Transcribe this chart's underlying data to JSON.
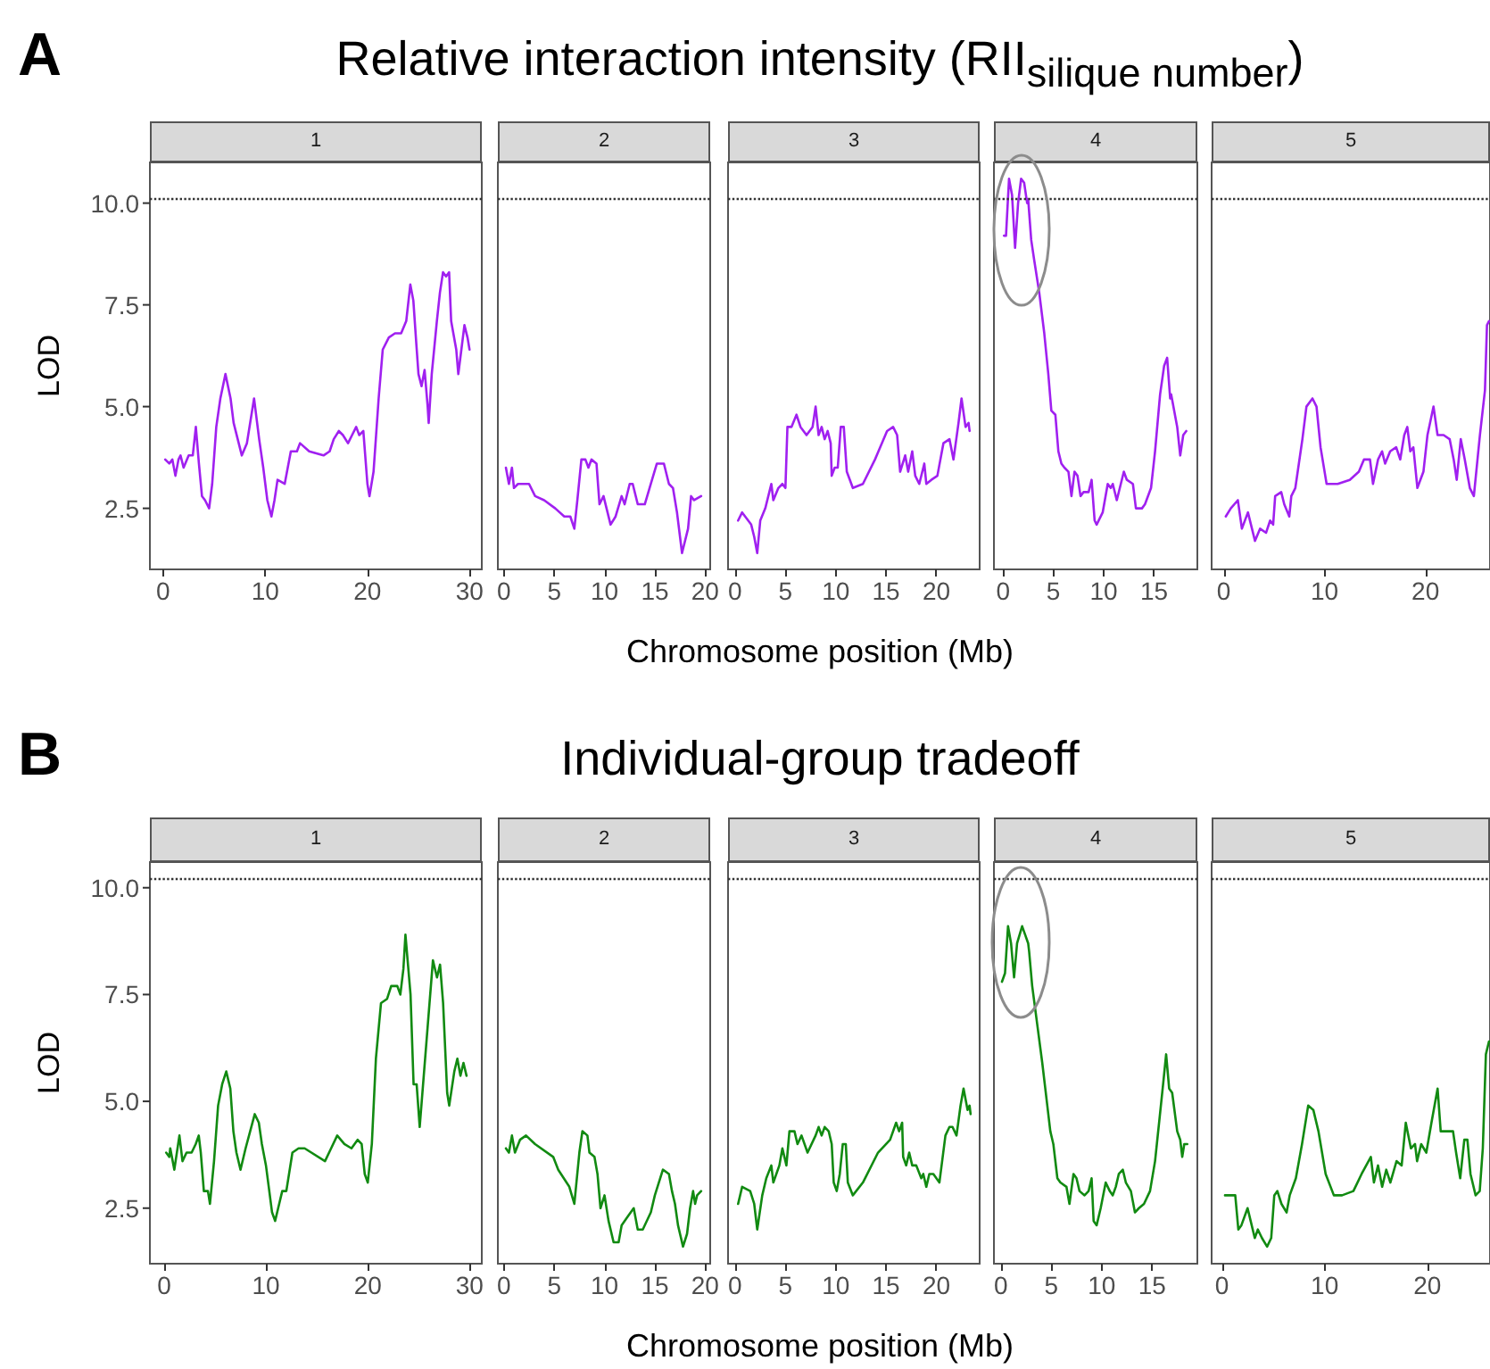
{
  "chart_data": [
    {
      "type": "line",
      "title": "1",
      "annotations": [
        "A"
      ],
      "ylabel": "LOD",
      "marker": "none",
      "grid": false,
      "xlim": [
        -1.3,
        31.2
      ],
      "ylim": [
        1.0,
        11.0
      ],
      "xticks": [
        0,
        10,
        20,
        30
      ],
      "yticks": [
        {
          "value": 2.5,
          "label": "2.5"
        },
        {
          "value": 5,
          "label": "5.0"
        },
        {
          "value": 7.5,
          "label": "7.5"
        },
        {
          "value": 10,
          "label": "10.0"
        }
      ],
      "ref_lines": [
        {
          "axis": "y",
          "value": 10.1,
          "color": "#333333",
          "line_style": "dotted"
        }
      ],
      "x": [
        0.2,
        0.6,
        0.9,
        1.2,
        1.5,
        1.7,
        2.0,
        2.5,
        2.9,
        3.2,
        3.5,
        3.8,
        4.1,
        4.5,
        4.8,
        5.2,
        5.6,
        6.1,
        6.6,
        6.9,
        7.3,
        7.7,
        8.2,
        8.9,
        9.2,
        9.4,
        9.8,
        10.2,
        10.6,
        10.9,
        11.2,
        11.9,
        12.5,
        13.1,
        13.4,
        14.3,
        15.7,
        16.3,
        16.7,
        17.2,
        17.6,
        18.1,
        18.5,
        18.9,
        19.2,
        19.6,
        20.0,
        20.2,
        20.6,
        21.1,
        21.5,
        22.1,
        22.7,
        23.3,
        23.8,
        24.2,
        24.5,
        24.8,
        25.0,
        25.3,
        25.6,
        25.9,
        26.0,
        26.3,
        26.8,
        27.1,
        27.4,
        27.7,
        28.0,
        28.2,
        28.7,
        28.9,
        29.2,
        29.5,
        29.8,
        30.0
      ],
      "series": [
        {
          "color": "#a020f0",
          "values": [
            3.7,
            3.6,
            3.7,
            3.3,
            3.7,
            3.8,
            3.5,
            3.8,
            3.8,
            4.5,
            3.6,
            2.8,
            2.7,
            2.5,
            3.1,
            4.5,
            5.2,
            5.8,
            5.2,
            4.6,
            4.2,
            3.8,
            4.1,
            5.2,
            4.6,
            4.2,
            3.5,
            2.7,
            2.3,
            2.7,
            3.2,
            3.1,
            3.9,
            3.9,
            4.1,
            3.9,
            3.8,
            3.9,
            4.2,
            4.4,
            4.3,
            4.1,
            4.3,
            4.5,
            4.3,
            4.4,
            3.1,
            2.8,
            3.4,
            5.2,
            6.4,
            6.7,
            6.8,
            6.8,
            7.1,
            8.0,
            7.6,
            6.5,
            5.8,
            5.5,
            5.9,
            5.0,
            4.6,
            5.8,
            7.1,
            7.8,
            8.3,
            8.2,
            8.3,
            7.1,
            6.4,
            5.8,
            6.4,
            7.0,
            6.7,
            6.4
          ]
        }
      ]
    },
    {
      "type": "line",
      "title": "2",
      "marker": "none",
      "grid": false,
      "tick_labels": "x",
      "xlim": [
        -0.6,
        20.5
      ],
      "ylim": [
        1.0,
        11.0
      ],
      "xticks": [
        0,
        5,
        10,
        15,
        20
      ],
      "ref_lines": [
        {
          "axis": "y",
          "value": 10.1,
          "color": "#333333",
          "line_style": "dotted"
        }
      ],
      "x": [
        0.2,
        0.5,
        0.8,
        1.0,
        1.4,
        2.5,
        3.1,
        4.0,
        5.1,
        6.0,
        6.6,
        7.0,
        7.3,
        7.7,
        8.1,
        8.4,
        8.7,
        9.2,
        9.5,
        9.9,
        10.2,
        10.6,
        11.1,
        11.7,
        12.0,
        12.5,
        12.8,
        13.3,
        14.0,
        14.6,
        15.2,
        15.9,
        16.4,
        16.8,
        17.2,
        17.7,
        18.3,
        18.6,
        18.9,
        19.6
      ],
      "series": [
        {
          "color": "#a020f0",
          "values": [
            3.5,
            3.1,
            3.5,
            3.0,
            3.1,
            3.1,
            2.8,
            2.7,
            2.5,
            2.3,
            2.3,
            2.0,
            2.7,
            3.7,
            3.7,
            3.5,
            3.7,
            3.6,
            2.6,
            2.8,
            2.5,
            2.1,
            2.3,
            2.8,
            2.6,
            3.1,
            3.1,
            2.6,
            2.6,
            3.1,
            3.6,
            3.6,
            3.1,
            3.0,
            2.4,
            1.4,
            2.0,
            2.8,
            2.7,
            2.8
          ]
        }
      ]
    },
    {
      "type": "line",
      "title": "3",
      "subtitle": "Relative interaction intensity (RII$_{silique number}$)",
      "xlabel": "Chromosome position (Mb)",
      "marker": "none",
      "grid": false,
      "tick_labels": "x",
      "xlim": [
        -0.7,
        24.3
      ],
      "ylim": [
        1.0,
        11.0
      ],
      "xticks": [
        0,
        5,
        10,
        15,
        20
      ],
      "ref_lines": [
        {
          "axis": "y",
          "value": 10.1,
          "color": "#333333",
          "line_style": "dotted"
        }
      ],
      "x": [
        0.3,
        0.7,
        1.6,
        1.9,
        2.2,
        2.5,
        3.0,
        3.6,
        3.8,
        4.3,
        4.7,
        5.0,
        5.2,
        5.6,
        6.1,
        6.5,
        7.1,
        7.7,
        8.0,
        8.3,
        8.6,
        8.9,
        9.2,
        9.5,
        9.6,
        9.9,
        10.2,
        10.5,
        10.8,
        11.1,
        11.7,
        12.7,
        13.9,
        15.1,
        15.7,
        16.1,
        16.4,
        16.9,
        17.2,
        17.6,
        17.9,
        18.3,
        18.8,
        19.0,
        19.5,
        20.1,
        20.7,
        21.3,
        21.7,
        22.2,
        22.5,
        22.9,
        23.2,
        23.3
      ],
      "series": [
        {
          "color": "#a020f0",
          "values": [
            2.2,
            2.4,
            2.1,
            1.8,
            1.4,
            2.2,
            2.5,
            3.1,
            2.7,
            3.0,
            3.1,
            3.0,
            4.5,
            4.5,
            4.8,
            4.5,
            4.3,
            4.5,
            5.0,
            4.3,
            4.5,
            4.2,
            4.4,
            4.1,
            3.3,
            3.5,
            3.5,
            4.5,
            4.5,
            3.4,
            3.0,
            3.1,
            3.7,
            4.4,
            4.5,
            4.3,
            3.4,
            3.8,
            3.4,
            3.9,
            3.3,
            3.1,
            3.6,
            3.1,
            3.2,
            3.3,
            4.1,
            4.2,
            3.7,
            4.6,
            5.2,
            4.5,
            4.6,
            4.4
          ]
        }
      ]
    },
    {
      "type": "line",
      "title": "4",
      "marker": "none",
      "grid": false,
      "tick_labels": "x",
      "xlim": [
        -0.9,
        19.3
      ],
      "ylim": [
        1.0,
        11.0
      ],
      "xticks": [
        0,
        5,
        10,
        15
      ],
      "ref_lines": [
        {
          "axis": "y",
          "value": 10.1,
          "color": "#333333",
          "line_style": "dotted"
        }
      ],
      "x": [
        0.1,
        0.3,
        0.6,
        0.9,
        1.2,
        1.5,
        1.8,
        2.1,
        2.4,
        2.5,
        2.8,
        3.1,
        3.6,
        4.1,
        4.5,
        4.8,
        5.2,
        5.5,
        5.8,
        6.1,
        6.5,
        6.8,
        7.1,
        7.4,
        7.7,
        8.0,
        8.5,
        8.8,
        9.1,
        9.3,
        9.9,
        10.4,
        10.7,
        10.9,
        11.3,
        11.7,
        12.0,
        12.3,
        12.9,
        13.2,
        13.8,
        14.1,
        14.7,
        15.1,
        15.6,
        16.0,
        16.3,
        16.6,
        16.7,
        17.3,
        17.6,
        17.9,
        18.2
      ],
      "series": [
        {
          "color": "#a020f0",
          "values": [
            9.2,
            9.2,
            10.6,
            10.2,
            8.9,
            10.0,
            10.6,
            10.5,
            10.0,
            10.1,
            9.1,
            8.6,
            7.8,
            6.8,
            5.8,
            4.9,
            4.8,
            3.9,
            3.6,
            3.5,
            3.4,
            2.8,
            3.4,
            3.3,
            2.8,
            2.9,
            2.9,
            3.2,
            2.2,
            2.1,
            2.4,
            3.1,
            3.0,
            3.1,
            2.7,
            3.1,
            3.4,
            3.2,
            3.1,
            2.5,
            2.5,
            2.6,
            3.0,
            3.9,
            5.3,
            6.0,
            6.2,
            5.2,
            5.3,
            4.5,
            3.8,
            4.3,
            4.4
          ]
        }
      ]
    },
    {
      "type": "line",
      "title": "5",
      "marker": "none",
      "grid": false,
      "tick_labels": "x",
      "xlim": [
        -1.2,
        26.4
      ],
      "ylim": [
        1.0,
        11.0
      ],
      "xticks": [
        0,
        10,
        20
      ],
      "ref_lines": [
        {
          "axis": "y",
          "value": 10.1,
          "color": "#333333",
          "line_style": "dotted"
        }
      ],
      "x": [
        0.2,
        0.7,
        1.4,
        1.8,
        2.4,
        3.1,
        3.6,
        4.2,
        4.6,
        4.9,
        5.1,
        5.7,
        6.0,
        6.5,
        6.7,
        7.1,
        7.8,
        8.2,
        8.8,
        9.2,
        9.6,
        10.2,
        11.3,
        12.5,
        13.4,
        13.9,
        14.5,
        14.8,
        15.3,
        15.7,
        16.0,
        16.5,
        17.1,
        17.5,
        17.9,
        18.2,
        18.5,
        18.8,
        19.2,
        19.8,
        20.2,
        20.8,
        21.2,
        21.8,
        22.4,
        22.8,
        23.1,
        23.5,
        23.9,
        24.4,
        24.8,
        25.4,
        25.9,
        26.1,
        26.3
      ],
      "series": [
        {
          "color": "#a020f0",
          "values": [
            2.3,
            2.5,
            2.7,
            2.0,
            2.4,
            1.7,
            2.0,
            1.9,
            2.2,
            2.1,
            2.8,
            2.9,
            2.6,
            2.3,
            2.8,
            3.0,
            4.2,
            5.0,
            5.2,
            5.0,
            4.0,
            3.1,
            3.1,
            3.2,
            3.4,
            3.7,
            3.7,
            3.1,
            3.7,
            3.9,
            3.6,
            3.9,
            4.0,
            3.7,
            4.3,
            4.5,
            3.9,
            4.0,
            3.0,
            3.4,
            4.3,
            5.0,
            4.3,
            4.3,
            4.2,
            3.7,
            3.2,
            4.2,
            3.7,
            3.0,
            2.8,
            4.3,
            5.4,
            7.0,
            7.1
          ]
        }
      ]
    },
    {
      "type": "line",
      "title": "1",
      "annotations": [
        "B"
      ],
      "ylabel": "LOD",
      "marker": "none",
      "grid": false,
      "xlim": [
        -1.4,
        31.2
      ],
      "ylim": [
        1.2,
        10.6
      ],
      "xticks": [
        0,
        10,
        20,
        30
      ],
      "yticks": [
        {
          "value": 2.5,
          "label": "2.5"
        },
        {
          "value": 5,
          "label": "5.0"
        },
        {
          "value": 7.5,
          "label": "7.5"
        },
        {
          "value": 10,
          "label": "10.0"
        }
      ],
      "ref_lines": [
        {
          "axis": "y",
          "value": 10.2,
          "color": "#333333",
          "line_style": "dotted"
        }
      ],
      "x": [
        0.2,
        0.5,
        0.6,
        1.0,
        1.5,
        1.8,
        2.2,
        2.7,
        3.1,
        3.4,
        3.6,
        3.9,
        4.3,
        4.5,
        4.9,
        5.3,
        5.7,
        6.1,
        6.5,
        6.8,
        7.1,
        7.5,
        8.0,
        8.9,
        9.3,
        9.6,
        10.0,
        10.6,
        10.9,
        11.2,
        11.6,
        12.0,
        12.6,
        13.2,
        13.8,
        15.8,
        16.4,
        17.0,
        17.7,
        18.4,
        19.0,
        19.4,
        19.7,
        20.0,
        20.4,
        20.8,
        21.3,
        21.9,
        22.3,
        22.9,
        23.2,
        23.5,
        23.7,
        24.2,
        24.5,
        24.8,
        25.1,
        25.5,
        25.9,
        26.4,
        26.8,
        27.1,
        27.4,
        27.8,
        28.0,
        28.5,
        28.8,
        29.1,
        29.4,
        29.7
      ],
      "series": [
        {
          "color": "#118a11",
          "values": [
            3.8,
            3.7,
            3.9,
            3.4,
            4.2,
            3.6,
            3.8,
            3.8,
            4.0,
            4.2,
            3.8,
            2.9,
            2.9,
            2.6,
            3.6,
            4.9,
            5.4,
            5.7,
            5.3,
            4.3,
            3.8,
            3.4,
            3.9,
            4.7,
            4.5,
            4.0,
            3.5,
            2.4,
            2.2,
            2.5,
            2.9,
            2.9,
            3.8,
            3.9,
            3.9,
            3.6,
            3.9,
            4.2,
            4.0,
            3.9,
            4.1,
            4.0,
            3.3,
            3.1,
            4.0,
            6.0,
            7.3,
            7.4,
            7.7,
            7.7,
            7.5,
            8.1,
            8.9,
            7.5,
            5.4,
            5.4,
            4.4,
            5.6,
            6.8,
            8.3,
            7.9,
            8.2,
            7.3,
            5.2,
            4.9,
            5.7,
            6.0,
            5.6,
            5.9,
            5.6
          ]
        }
      ]
    },
    {
      "type": "line",
      "title": "2",
      "marker": "none",
      "grid": false,
      "tick_labels": "x",
      "xlim": [
        -0.6,
        20.5
      ],
      "ylim": [
        1.2,
        10.6
      ],
      "xticks": [
        0,
        5,
        10,
        15,
        20
      ],
      "ref_lines": [
        {
          "axis": "y",
          "value": 10.2,
          "color": "#333333",
          "line_style": "dotted"
        }
      ],
      "x": [
        0.2,
        0.5,
        0.8,
        1.1,
        1.6,
        2.2,
        3.1,
        4.9,
        5.4,
        6.5,
        7.0,
        7.5,
        7.8,
        8.3,
        8.5,
        9.0,
        9.3,
        9.6,
        10.0,
        10.4,
        10.9,
        11.4,
        11.7,
        12.3,
        12.9,
        13.3,
        13.8,
        14.6,
        15.0,
        15.8,
        16.4,
        16.7,
        17.0,
        17.3,
        17.8,
        18.2,
        18.5,
        18.8,
        19.0,
        19.2,
        19.6
      ],
      "series": [
        {
          "color": "#118a11",
          "values": [
            3.9,
            3.8,
            4.2,
            3.8,
            4.1,
            4.2,
            4.0,
            3.7,
            3.4,
            3.0,
            2.6,
            3.8,
            4.3,
            4.2,
            3.8,
            3.7,
            3.3,
            2.5,
            2.8,
            2.2,
            1.7,
            1.7,
            2.1,
            2.3,
            2.5,
            2.0,
            2.0,
            2.4,
            2.8,
            3.4,
            3.3,
            2.9,
            2.6,
            2.1,
            1.6,
            1.9,
            2.5,
            2.9,
            2.6,
            2.8,
            2.9
          ]
        }
      ]
    },
    {
      "type": "line",
      "title": "3",
      "subtitle": "Individual-group tradeoff",
      "xlabel": "Chromosome position (Mb)",
      "marker": "none",
      "grid": false,
      "tick_labels": "x",
      "xlim": [
        -0.7,
        24.3
      ],
      "ylim": [
        1.2,
        10.6
      ],
      "xticks": [
        0,
        5,
        10,
        15,
        20
      ],
      "ref_lines": [
        {
          "axis": "y",
          "value": 10.2,
          "color": "#333333",
          "line_style": "dotted"
        }
      ],
      "x": [
        0.3,
        0.7,
        1.5,
        1.9,
        2.2,
        2.7,
        3.1,
        3.6,
        3.8,
        4.4,
        4.7,
        5.1,
        5.4,
        5.9,
        6.2,
        6.6,
        7.2,
        8.0,
        8.3,
        8.6,
        8.9,
        9.3,
        9.6,
        9.8,
        10.1,
        10.4,
        10.7,
        11.0,
        11.2,
        11.7,
        12.7,
        14.2,
        15.4,
        16.0,
        16.3,
        16.6,
        16.7,
        17.0,
        17.3,
        17.6,
        18.0,
        18.5,
        18.7,
        19.0,
        19.3,
        19.7,
        20.3,
        20.9,
        21.3,
        21.6,
        22.0,
        22.4,
        22.7,
        23.1,
        23.3,
        23.4
      ],
      "series": [
        {
          "color": "#118a11",
          "values": [
            2.6,
            3.0,
            2.9,
            2.6,
            2.0,
            2.8,
            3.2,
            3.5,
            3.1,
            3.5,
            3.9,
            3.5,
            4.3,
            4.3,
            4.0,
            4.2,
            3.8,
            4.2,
            4.4,
            4.2,
            4.4,
            4.3,
            4.0,
            3.1,
            2.9,
            3.3,
            4.0,
            4.0,
            3.1,
            2.8,
            3.1,
            3.8,
            4.1,
            4.5,
            4.3,
            4.5,
            3.7,
            3.5,
            3.8,
            3.5,
            3.5,
            3.2,
            3.3,
            3.0,
            3.3,
            3.3,
            3.1,
            4.2,
            4.4,
            4.4,
            4.2,
            4.9,
            5.3,
            4.8,
            4.9,
            4.7
          ]
        }
      ]
    },
    {
      "type": "line",
      "title": "4",
      "marker": "none",
      "grid": false,
      "tick_labels": "x",
      "xlim": [
        -0.7,
        19.5
      ],
      "ylim": [
        1.2,
        10.6
      ],
      "xticks": [
        0,
        5,
        10,
        15
      ],
      "ref_lines": [
        {
          "axis": "y",
          "value": 10.2,
          "color": "#333333",
          "line_style": "dotted"
        }
      ],
      "x": [
        0.1,
        0.4,
        0.7,
        1.0,
        1.3,
        1.6,
        2.1,
        2.4,
        2.7,
        2.8,
        3.1,
        3.6,
        4.1,
        4.6,
        4.9,
        5.2,
        5.6,
        5.9,
        6.5,
        6.8,
        7.2,
        7.5,
        7.8,
        8.3,
        8.7,
        9.0,
        9.2,
        9.5,
        9.9,
        10.4,
        10.8,
        11.1,
        11.4,
        11.7,
        12.1,
        12.4,
        12.9,
        13.3,
        13.7,
        14.2,
        14.8,
        15.3,
        15.7,
        16.1,
        16.4,
        16.7,
        17.0,
        17.5,
        17.8,
        18.0,
        18.2,
        18.5
      ],
      "series": [
        {
          "color": "#118a11",
          "values": [
            7.8,
            8.0,
            9.1,
            8.7,
            7.9,
            8.7,
            9.1,
            8.9,
            8.7,
            8.5,
            7.7,
            6.8,
            5.9,
            4.9,
            4.3,
            4.0,
            3.2,
            3.1,
            3.0,
            2.6,
            3.3,
            3.2,
            2.9,
            2.8,
            2.9,
            3.2,
            2.2,
            2.1,
            2.5,
            3.1,
            2.9,
            2.8,
            3.0,
            3.3,
            3.4,
            3.1,
            2.9,
            2.4,
            2.5,
            2.6,
            2.9,
            3.6,
            4.5,
            5.4,
            6.1,
            5.3,
            5.2,
            4.3,
            4.1,
            3.7,
            4.0,
            4.0
          ]
        }
      ]
    },
    {
      "type": "line",
      "title": "5",
      "marker": "none",
      "grid": false,
      "tick_labels": "x",
      "xlim": [
        -1.0,
        26.1
      ],
      "ylim": [
        1.2,
        10.6
      ],
      "xticks": [
        0,
        10,
        20
      ],
      "ref_lines": [
        {
          "axis": "y",
          "value": 10.2,
          "color": "#333333",
          "line_style": "dotted"
        }
      ],
      "x": [
        0.3,
        1.3,
        1.6,
        1.9,
        2.5,
        2.8,
        3.2,
        3.5,
        3.9,
        4.4,
        4.8,
        5.1,
        5.4,
        5.8,
        6.3,
        6.6,
        7.2,
        7.8,
        8.4,
        8.9,
        9.4,
        10.1,
        10.9,
        11.7,
        12.8,
        13.6,
        14.5,
        14.8,
        15.2,
        15.6,
        16.0,
        16.4,
        17.0,
        17.5,
        17.9,
        18.4,
        18.8,
        19.0,
        19.4,
        19.9,
        20.4,
        21.0,
        21.3,
        21.9,
        22.5,
        22.8,
        23.2,
        23.6,
        23.9,
        24.2,
        24.7,
        25.1,
        25.4,
        25.7,
        26.0
      ],
      "series": [
        {
          "color": "#118a11",
          "values": [
            2.8,
            2.8,
            2.0,
            2.1,
            2.5,
            2.2,
            1.8,
            2.0,
            1.8,
            1.6,
            1.8,
            2.8,
            2.9,
            2.6,
            2.4,
            2.8,
            3.2,
            4.0,
            4.9,
            4.8,
            4.3,
            3.3,
            2.8,
            2.8,
            2.9,
            3.3,
            3.7,
            3.1,
            3.5,
            3.0,
            3.4,
            3.1,
            3.6,
            3.5,
            4.5,
            3.9,
            4.0,
            3.6,
            4.0,
            3.8,
            4.5,
            5.3,
            4.3,
            4.3,
            4.3,
            3.8,
            3.2,
            4.1,
            4.1,
            3.3,
            2.8,
            2.9,
            3.9,
            6.1,
            6.4
          ]
        }
      ]
    }
  ]
}
